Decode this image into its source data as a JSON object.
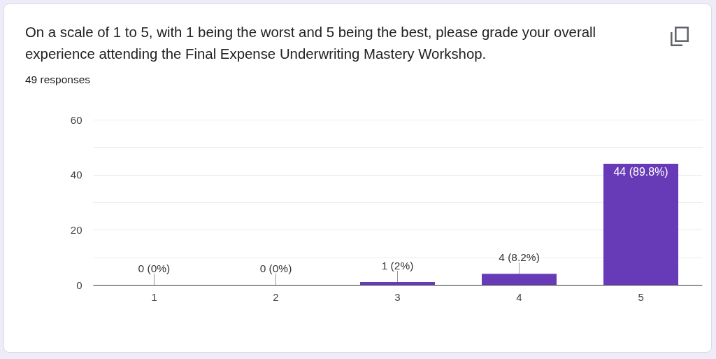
{
  "chart_data": {
    "type": "bar",
    "title": "On a scale of 1 to 5, with 1 being the worst and 5 being the best, please grade your overall experience attending the Final Expense Underwriting Mastery Workshop.",
    "subtitle": "49 responses",
    "categories": [
      "1",
      "2",
      "3",
      "4",
      "5"
    ],
    "values": [
      0,
      0,
      1,
      4,
      44
    ],
    "color": "#673ab7",
    "value_labels": [
      "0 (0%)",
      "0 (0%)",
      "1 (2%)",
      "4 (8.2%)",
      "44 (89.8%)"
    ],
    "ylim": [
      0,
      60
    ],
    "yticks": [
      0,
      {
        "value": 10,
        "label": null
      },
      20,
      {
        "value": 30,
        "label": null
      },
      40,
      {
        "value": 50,
        "label": null
      },
      60
    ],
    "grid": "y"
  }
}
